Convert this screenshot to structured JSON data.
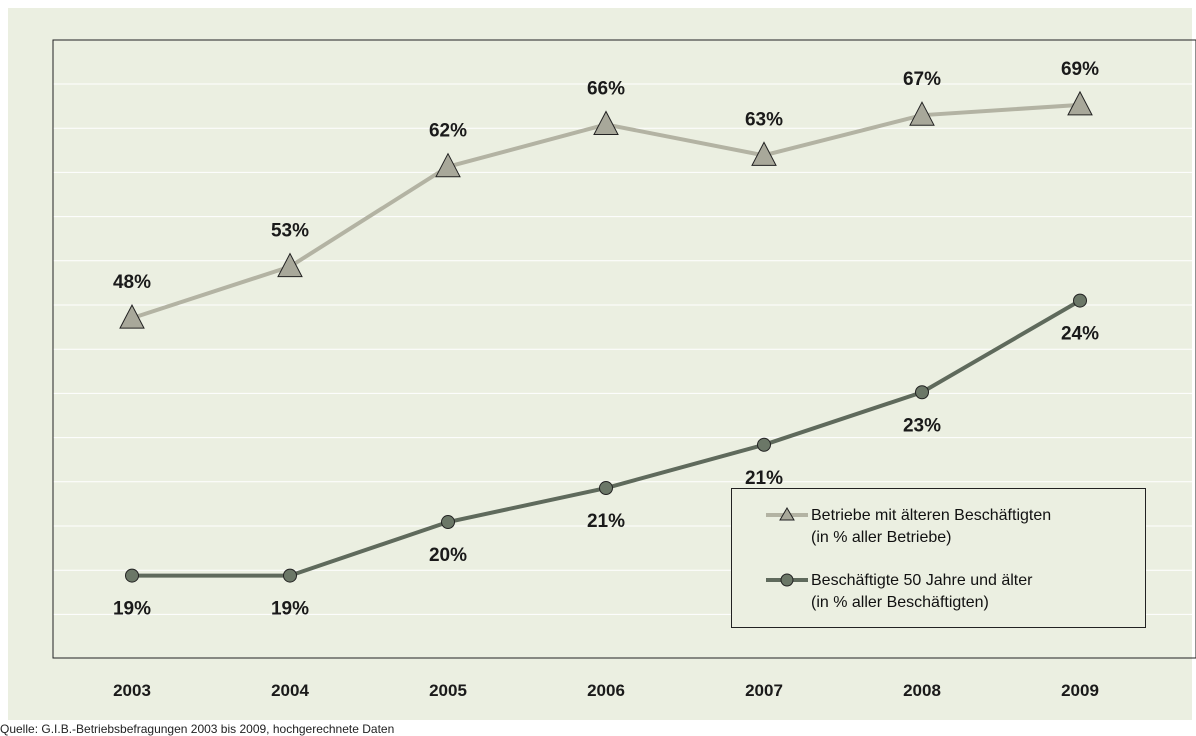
{
  "chart_data": {
    "type": "line",
    "categories": [
      "2003",
      "2004",
      "2005",
      "2006",
      "2007",
      "2008",
      "2009"
    ],
    "ylim": [
      12,
      72
    ],
    "grid": true,
    "legend_position": "bottom-right",
    "series": [
      {
        "name": "Betriebe mit älteren Beschäftigten\n(in % aller Betriebe)",
        "name_line1": "Betriebe mit älteren Beschäftigten",
        "name_line2": "(in % aller Betriebe)",
        "values": [
          48,
          53,
          62,
          66,
          63,
          67,
          69
        ],
        "plot_values": [
          45.0,
          50.0,
          59.7,
          63.8,
          60.8,
          64.7,
          65.7
        ],
        "labels": [
          "48%",
          "53%",
          "62%",
          "66%",
          "63%",
          "67%",
          "69%"
        ],
        "label_position": "above",
        "marker": "triangle",
        "color": "#B3B3A3",
        "marker_fill": "#A8A89A"
      },
      {
        "name": "Beschäftigte 50 Jahre und älter\n(in % aller Beschäftigten)",
        "name_line1": "Beschäftigte 50 Jahre und älter",
        "name_line2": "(in % aller Beschäftigten)",
        "values": [
          19,
          19,
          20,
          21,
          21,
          23,
          24
        ],
        "plot_values": [
          20.0,
          20.0,
          25.2,
          28.5,
          32.7,
          37.8,
          46.7
        ],
        "labels": [
          "19%",
          "19%",
          "20%",
          "21%",
          "21%",
          "23%",
          "24%"
        ],
        "label_position": "below",
        "marker": "circle",
        "color": "#5F6A5C",
        "marker_fill": "#6B7767"
      }
    ]
  },
  "footer": {
    "source": "Quelle: G.I.B.-Betriebsbefragungen 2003 bis 2009, hochgerechnete Daten"
  }
}
